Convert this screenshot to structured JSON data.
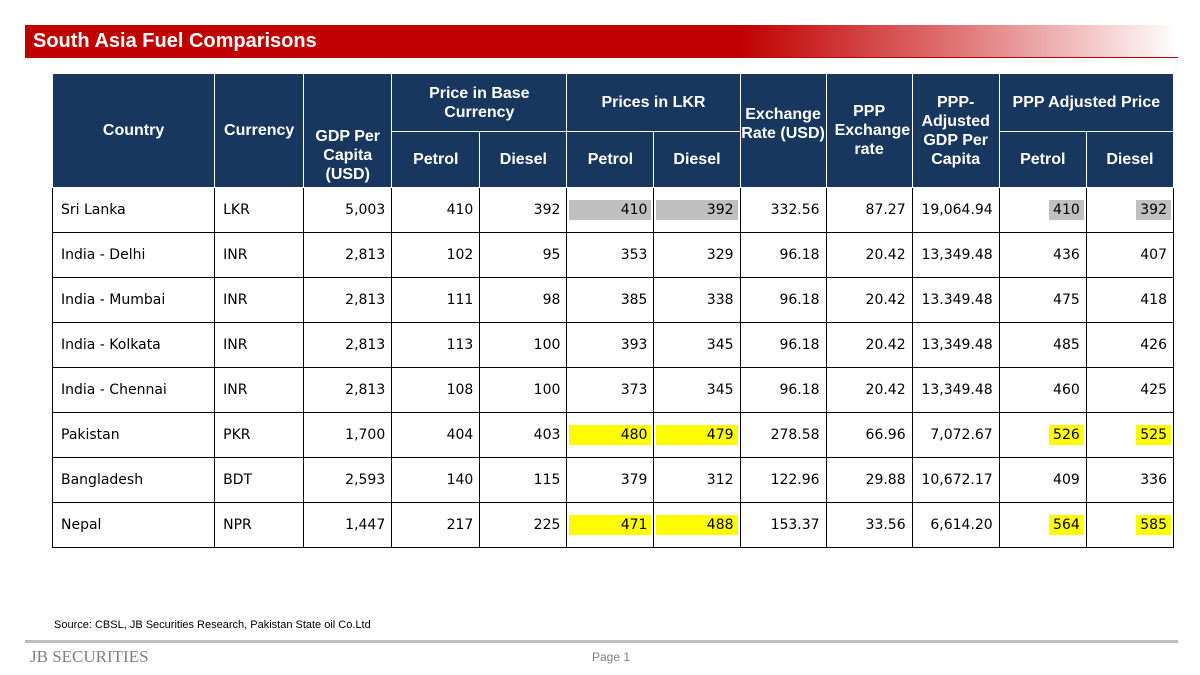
{
  "title": "South Asia Fuel Comparisons",
  "table": {
    "headers": {
      "country": "Country",
      "currency": "Currency",
      "gdp": "GDP Per Capita (USD)",
      "base_group": "Price in Base Currency",
      "lkr_group": "Prices in LKR",
      "exchange": "Exchange Rate (USD)",
      "ppp_rate": "PPP Exchange rate",
      "ppp_gdp": "PPP-Adjusted GDP Per Capita",
      "ppp_group": "PPP Adjusted Price",
      "petrol": "Petrol",
      "diesel": "Diesel"
    },
    "rows": [
      {
        "country": "Sri Lanka",
        "currency": "LKR",
        "gdp": "5,003",
        "base_petrol": "410",
        "base_diesel": "392",
        "lkr_petrol": "410",
        "lkr_diesel": "392",
        "exchange": "332.56",
        "ppp_rate": "87.27",
        "ppp_gdp": "19,064.94",
        "ppp_petrol": "410",
        "ppp_diesel": "392",
        "highlight": "gray"
      },
      {
        "country": "India - Delhi",
        "currency": "INR",
        "gdp": "2,813",
        "base_petrol": "102",
        "base_diesel": "95",
        "lkr_petrol": "353",
        "lkr_diesel": "329",
        "exchange": "96.18",
        "ppp_rate": "20.42",
        "ppp_gdp": "13,349.48",
        "ppp_petrol": "436",
        "ppp_diesel": "407",
        "highlight": ""
      },
      {
        "country": "India - Mumbai",
        "currency": "INR",
        "gdp": "2,813",
        "base_petrol": "111",
        "base_diesel": "98",
        "lkr_petrol": "385",
        "lkr_diesel": "338",
        "exchange": "96.18",
        "ppp_rate": "20.42",
        "ppp_gdp": "13.349.48",
        "ppp_petrol": "475",
        "ppp_diesel": "418",
        "highlight": ""
      },
      {
        "country": "India - Kolkata",
        "currency": "INR",
        "gdp": "2,813",
        "base_petrol": "113",
        "base_diesel": "100",
        "lkr_petrol": "393",
        "lkr_diesel": "345",
        "exchange": "96.18",
        "ppp_rate": "20.42",
        "ppp_gdp": "13,349.48",
        "ppp_petrol": "485",
        "ppp_diesel": "426",
        "highlight": ""
      },
      {
        "country": "India - Chennai",
        "currency": "INR",
        "gdp": "2,813",
        "base_petrol": "108",
        "base_diesel": "100",
        "lkr_petrol": "373",
        "lkr_diesel": "345",
        "exchange": "96.18",
        "ppp_rate": "20.42",
        "ppp_gdp": "13,349.48",
        "ppp_petrol": "460",
        "ppp_diesel": "425",
        "highlight": ""
      },
      {
        "country": "Pakistan",
        "currency": "PKR",
        "gdp": "1,700",
        "base_petrol": "404",
        "base_diesel": "403",
        "lkr_petrol": "480",
        "lkr_diesel": "479",
        "exchange": "278.58",
        "ppp_rate": "66.96",
        "ppp_gdp": "7,072.67",
        "ppp_petrol": "526",
        "ppp_diesel": "525",
        "highlight": "yellow"
      },
      {
        "country": "Bangladesh",
        "currency": "BDT",
        "gdp": "2,593",
        "base_petrol": "140",
        "base_diesel": "115",
        "lkr_petrol": "379",
        "lkr_diesel": "312",
        "exchange": "122.96",
        "ppp_rate": "29.88",
        "ppp_gdp": "10,672.17",
        "ppp_petrol": "409",
        "ppp_diesel": "336",
        "highlight": ""
      },
      {
        "country": "Nepal",
        "currency": "NPR",
        "gdp": "1,447",
        "base_petrol": "217",
        "base_diesel": "225",
        "lkr_petrol": "471",
        "lkr_diesel": "488",
        "exchange": "153.37",
        "ppp_rate": "33.56",
        "ppp_gdp": "6,614.20",
        "ppp_petrol": "564",
        "ppp_diesel": "585",
        "highlight": "yellow"
      }
    ]
  },
  "highlight_colors": {
    "gray": "#c0c0c0",
    "yellow": "#ffff00"
  },
  "source": "Source: CBSL, JB Securities Research, Pakistan State oil Co.Ltd",
  "footer": {
    "logo_text": "JB SECURITIES",
    "page_label": "Page 1"
  }
}
